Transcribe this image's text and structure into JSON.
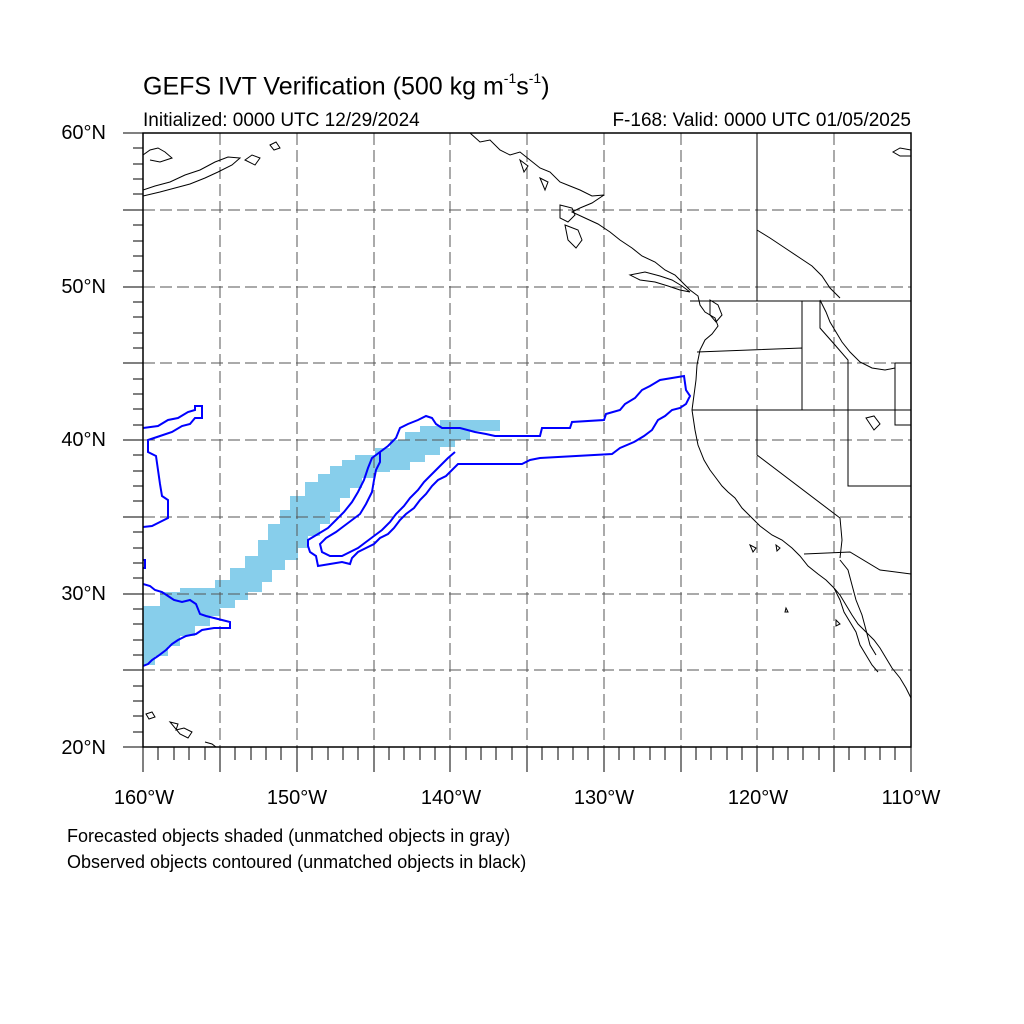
{
  "title": {
    "main": "GEFS IVT Verification (500 kg m",
    "sup1": "-1",
    "mid": "s",
    "sup2": "-1",
    "end": ")"
  },
  "initialized": "Initialized: 0000 UTC 12/29/2024",
  "valid": "F-168: Valid: 0000 UTC 01/05/2025",
  "lat_labels": [
    "60°N",
    "50°N",
    "40°N",
    "30°N",
    "20°N"
  ],
  "lon_labels": [
    "160°W",
    "150°W",
    "140°W",
    "130°W",
    "120°W",
    "110°W"
  ],
  "notes": [
    "Forecasted objects shaded (unmatched objects in gray)",
    "Observed objects contoured (unmatched objects in black)"
  ],
  "colors": {
    "forecast_fill": "#87CEEB",
    "observed_contour": "#0000FF",
    "grid": "#555555",
    "coast": "#000000"
  },
  "map": {
    "lon_range": [
      -160,
      -110
    ],
    "lat_range": [
      20,
      60
    ],
    "grid_spacing_deg": 5,
    "grid_style": "dashed"
  }
}
